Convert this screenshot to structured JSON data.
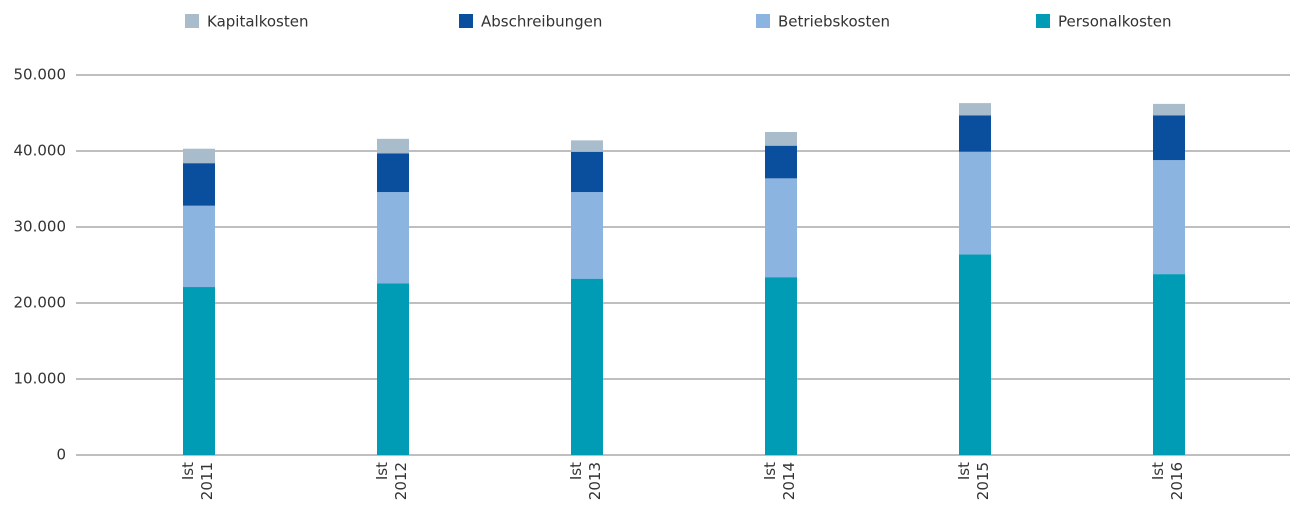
{
  "chart_data": {
    "type": "stacked_bar",
    "categories": [
      "Ist\n2011",
      "Ist\n2012",
      "Ist\n2013",
      "Ist\n2014",
      "Ist\n2015",
      "Ist\n2016"
    ],
    "series": [
      {
        "name": "Personalkosten",
        "color": "#009bb4",
        "values": [
          22100,
          22600,
          23200,
          23400,
          26400,
          23800
        ]
      },
      {
        "name": "Betriebskosten",
        "color": "#8cb4e0",
        "values": [
          10700,
          12000,
          11400,
          13000,
          13500,
          15000
        ]
      },
      {
        "name": "Abschreibungen",
        "color": "#0a4f9e",
        "values": [
          5600,
          5100,
          5300,
          4300,
          4800,
          5900
        ]
      },
      {
        "name": "Kapitalkosten",
        "color": "#a9bccb",
        "values": [
          1900,
          1900,
          1500,
          1800,
          1600,
          1500
        ]
      }
    ],
    "ylim": [
      0,
      50000
    ],
    "yticks": [
      0,
      {
        "value": 10000,
        "label": "10.000"
      },
      {
        "value": 20000,
        "label": "20.000"
      },
      {
        "value": 30000,
        "label": "30.000"
      },
      {
        "value": 40000,
        "label": "40.000"
      },
      {
        "value": 50000,
        "label": "50.000"
      }
    ],
    "grid": true,
    "legend": "top"
  }
}
